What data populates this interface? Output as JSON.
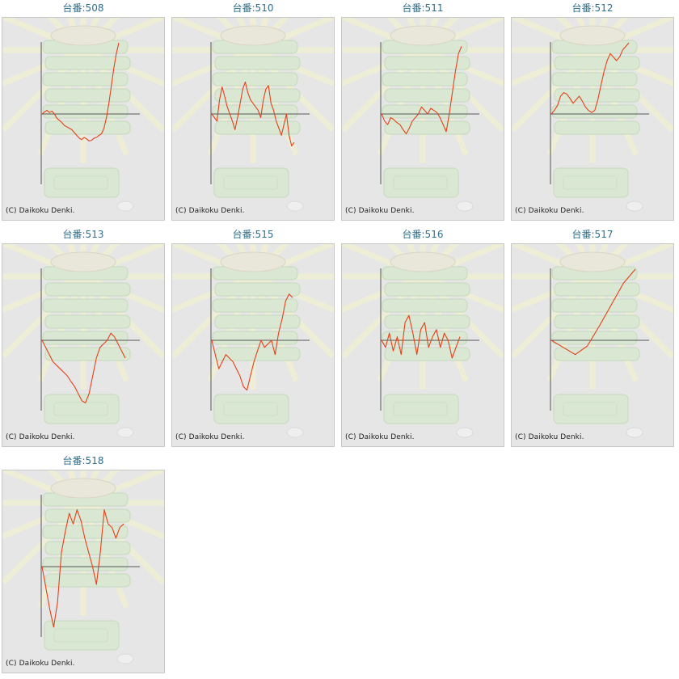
{
  "colors": {
    "line": "#e8401a",
    "axis": "#555555",
    "title": "#2f6f8f",
    "background": "#e6e6e6"
  },
  "charts": [
    {
      "title": "台番:508",
      "copyright": "(C) Daikoku Denki."
    },
    {
      "title": "台番:510",
      "copyright": "(C) Daikoku Denki."
    },
    {
      "title": "台番:511",
      "copyright": "(C) Daikoku Denki."
    },
    {
      "title": "台番:512",
      "copyright": "(C) Daikoku Denki."
    },
    {
      "title": "台番:513",
      "copyright": "(C) Daikoku Denki."
    },
    {
      "title": "台番:515",
      "copyright": "(C) Daikoku Denki."
    },
    {
      "title": "台番:516",
      "copyright": "(C) Daikoku Denki."
    },
    {
      "title": "台番:517",
      "copyright": "(C) Daikoku Denki."
    },
    {
      "title": "台番:518",
      "copyright": "(C) Daikoku Denki."
    }
  ],
  "chart_data": [
    {
      "type": "line",
      "title": "台番:508",
      "ylim": [
        -1,
        1
      ],
      "grid": false,
      "y": [
        0.0,
        0.03,
        0.05,
        0.02,
        0.04,
        0.0,
        -0.06,
        -0.09,
        -0.12,
        -0.16,
        -0.18,
        -0.2,
        -0.22,
        -0.26,
        -0.3,
        -0.34,
        -0.36,
        -0.33,
        -0.35,
        -0.38,
        -0.37,
        -0.34,
        -0.33,
        -0.3,
        -0.28,
        -0.2,
        -0.05,
        0.15,
        0.4,
        0.65,
        0.85,
        1.0
      ]
    },
    {
      "type": "line",
      "title": "台番:510",
      "ylim": [
        -1,
        1
      ],
      "grid": false,
      "y": [
        0.0,
        -0.05,
        -0.1,
        0.2,
        0.38,
        0.25,
        0.1,
        0.0,
        -0.1,
        -0.22,
        -0.05,
        0.15,
        0.35,
        0.45,
        0.3,
        0.2,
        0.15,
        0.1,
        0.05,
        -0.05,
        0.2,
        0.35,
        0.4,
        0.15,
        0.05,
        -0.1,
        -0.2,
        -0.3,
        -0.15,
        0.0,
        -0.3,
        -0.45,
        -0.4
      ]
    },
    {
      "type": "line",
      "title": "台番:511",
      "ylim": [
        -1,
        1
      ],
      "grid": false,
      "y": [
        0.0,
        -0.1,
        -0.15,
        -0.05,
        -0.08,
        -0.12,
        -0.15,
        -0.22,
        -0.28,
        -0.2,
        -0.1,
        -0.05,
        0.0,
        0.1,
        0.05,
        0.0,
        0.08,
        0.05,
        0.02,
        -0.05,
        -0.15,
        -0.25,
        0.0,
        0.3,
        0.6,
        0.85,
        0.95
      ]
    },
    {
      "type": "line",
      "title": "台番:512",
      "ylim": [
        -1,
        1
      ],
      "grid": false,
      "y": [
        0.0,
        0.05,
        0.12,
        0.25,
        0.3,
        0.28,
        0.22,
        0.15,
        0.2,
        0.25,
        0.18,
        0.1,
        0.05,
        0.02,
        0.05,
        0.2,
        0.4,
        0.6,
        0.75,
        0.85,
        0.8,
        0.75,
        0.8,
        0.9,
        0.95,
        1.0
      ]
    },
    {
      "type": "line",
      "title": "台番:513",
      "ylim": [
        -1,
        1
      ],
      "grid": false,
      "y": [
        0.0,
        -0.1,
        -0.2,
        -0.3,
        -0.35,
        -0.4,
        -0.45,
        -0.5,
        -0.58,
        -0.65,
        -0.75,
        -0.85,
        -0.88,
        -0.75,
        -0.5,
        -0.25,
        -0.1,
        -0.05,
        0.0,
        0.1,
        0.05,
        -0.05,
        -0.15,
        -0.25
      ]
    },
    {
      "type": "line",
      "title": "台番:515",
      "ylim": [
        -1,
        1
      ],
      "grid": false,
      "y": [
        0.0,
        -0.2,
        -0.4,
        -0.3,
        -0.2,
        -0.25,
        -0.3,
        -0.4,
        -0.5,
        -0.65,
        -0.7,
        -0.5,
        -0.3,
        -0.15,
        0.0,
        -0.1,
        -0.05,
        0.0,
        -0.2,
        0.1,
        0.3,
        0.55,
        0.65,
        0.6
      ]
    },
    {
      "type": "line",
      "title": "台番:516",
      "ylim": [
        -1,
        1
      ],
      "grid": false,
      "y": [
        0.0,
        -0.1,
        0.1,
        -0.15,
        0.05,
        -0.2,
        0.25,
        0.35,
        0.1,
        -0.2,
        0.15,
        0.25,
        -0.1,
        0.05,
        0.15,
        -0.1,
        0.1,
        0.0,
        -0.25,
        -0.1,
        0.05
      ]
    },
    {
      "type": "line",
      "title": "台番:517",
      "ylim": [
        -1,
        1
      ],
      "grid": false,
      "y": [
        0.0,
        -0.1,
        -0.2,
        -0.08,
        0.2,
        0.5,
        0.8,
        1.0
      ]
    },
    {
      "type": "line",
      "title": "台番:518",
      "ylim": [
        -1,
        1
      ],
      "grid": false,
      "y": [
        0.0,
        -0.3,
        -0.6,
        -0.85,
        -0.5,
        0.2,
        0.5,
        0.75,
        0.6,
        0.8,
        0.65,
        0.4,
        0.2,
        0.0,
        -0.25,
        0.2,
        0.8,
        0.6,
        0.55,
        0.4,
        0.55,
        0.6
      ]
    }
  ]
}
